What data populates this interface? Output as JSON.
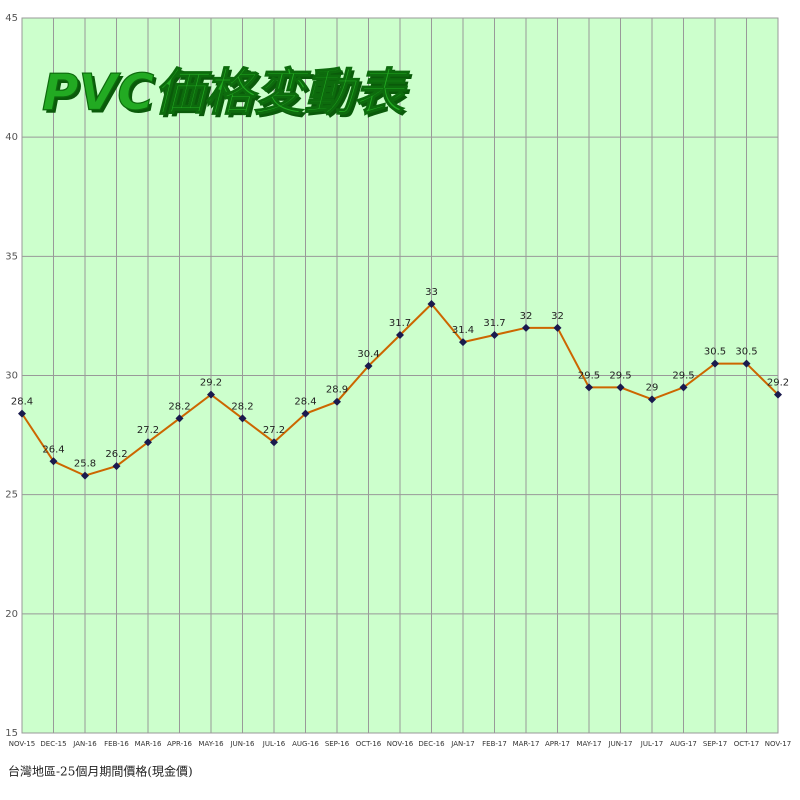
{
  "chart_data": {
    "type": "line",
    "title": "PVC価格変動表",
    "note": "台灣地區-25個月期間價格(現金價)",
    "categories": [
      "NOV-15",
      "DEC-15",
      "JAN-16",
      "FEB-16",
      "MAR-16",
      "APR-16",
      "MAY-16",
      "JUN-16",
      "JUL-16",
      "AUG-16",
      "SEP-16",
      "OCT-16",
      "NOV-16",
      "DEC-16",
      "JAN-17",
      "FEB-17",
      "MAR-17",
      "APR-17",
      "MAY-17",
      "JUN-17",
      "JUL-17",
      "AUG-17",
      "SEP-17",
      "OCT-17",
      "NOV-17"
    ],
    "series": [
      {
        "color": "#cc6600",
        "marker_color": "#1a1a4d",
        "values": [
          28.4,
          26.4,
          25.8,
          26.2,
          27.2,
          28.2,
          29.2,
          28.2,
          27.2,
          28.4,
          28.9,
          30.4,
          31.7,
          33,
          31.4,
          31.7,
          32,
          32,
          29.5,
          29.5,
          29,
          29.5,
          30.5,
          30.5,
          29.2
        ]
      }
    ],
    "ylim": [
      15,
      45
    ],
    "yticks": [
      15,
      20,
      25,
      30,
      35,
      40,
      45
    ],
    "grid": true,
    "background": "#ccffcc"
  }
}
